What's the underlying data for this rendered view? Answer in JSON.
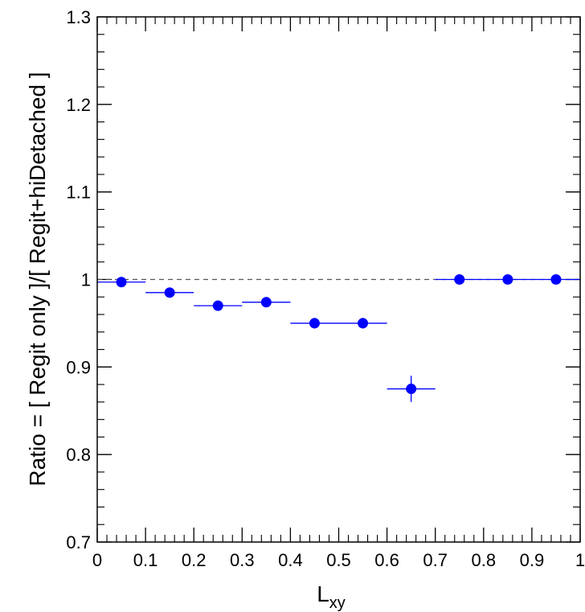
{
  "chart_data": {
    "type": "scatter",
    "xlabel": "L",
    "xlabel_subscript": "xy",
    "ylabel": "Ratio = [ Regit only ]/[ Regit+hiDetached ]",
    "xlim": [
      0,
      1
    ],
    "ylim": [
      0.7,
      1.3
    ],
    "x_ticks": [
      "0",
      "0.1",
      "0.2",
      "0.3",
      "0.4",
      "0.5",
      "0.6",
      "0.7",
      "0.8",
      "0.9",
      "1"
    ],
    "y_ticks": [
      "0.7",
      "0.8",
      "0.9",
      "1",
      "1.1",
      "1.2",
      "1.3"
    ],
    "reference_line": 1.0,
    "grid": false,
    "marker_color": "#0000ff",
    "reference_line_color": "#555555",
    "points": [
      {
        "x": 0.05,
        "y": 0.997,
        "xerr": 0.05,
        "yerr": 0.002
      },
      {
        "x": 0.15,
        "y": 0.985,
        "xerr": 0.05,
        "yerr": 0.003
      },
      {
        "x": 0.25,
        "y": 0.97,
        "xerr": 0.05,
        "yerr": 0.004
      },
      {
        "x": 0.35,
        "y": 0.974,
        "xerr": 0.05,
        "yerr": 0.004
      },
      {
        "x": 0.45,
        "y": 0.95,
        "xerr": 0.05,
        "yerr": 0.006
      },
      {
        "x": 0.55,
        "y": 0.95,
        "xerr": 0.05,
        "yerr": 0.006
      },
      {
        "x": 0.65,
        "y": 0.875,
        "xerr": 0.05,
        "yerr": 0.015
      },
      {
        "x": 0.75,
        "y": 1.0,
        "xerr": 0.05,
        "yerr": 0.0
      },
      {
        "x": 0.85,
        "y": 1.0,
        "xerr": 0.05,
        "yerr": 0.0
      },
      {
        "x": 0.95,
        "y": 1.0,
        "xerr": 0.05,
        "yerr": 0.0
      }
    ]
  }
}
